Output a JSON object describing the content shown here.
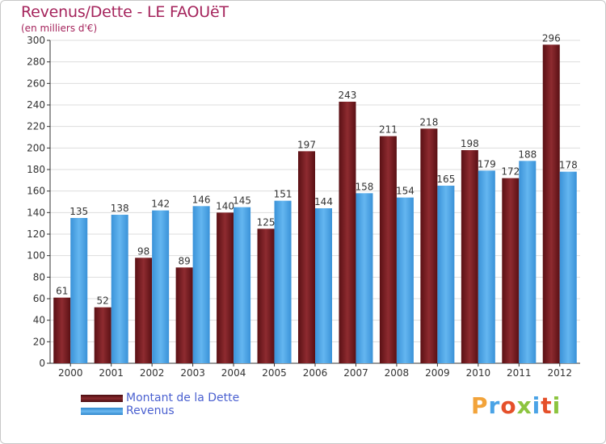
{
  "header": {
    "title": "Revenus/Dette - LE FAOUëT",
    "subtitle": "(en milliers d'€)"
  },
  "colors": {
    "dette": "#7a1f23",
    "revenus": "#4aa3e6",
    "grid": "#dddddd",
    "axis": "#333333",
    "label": "#333333"
  },
  "logo": {
    "letters": [
      "P",
      "r",
      "o",
      "x",
      "i",
      "t",
      "i"
    ],
    "colors": [
      "#f2a33a",
      "#4aa3e6",
      "#e5502a",
      "#8cc43f",
      "#4aa3e6",
      "#e5502a",
      "#8cc43f"
    ]
  },
  "chart_data": {
    "type": "bar",
    "title": "Revenus/Dette - LE FAOUëT",
    "subtitle": "(en milliers d'€)",
    "categories": [
      "2000",
      "2001",
      "2002",
      "2003",
      "2004",
      "2005",
      "2006",
      "2007",
      "2008",
      "2009",
      "2010",
      "2011",
      "2012"
    ],
    "series": [
      {
        "name": "Montant de la Dette",
        "values": [
          61,
          52,
          98,
          89,
          140,
          125,
          197,
          243,
          211,
          218,
          198,
          172,
          296
        ]
      },
      {
        "name": "Revenus",
        "values": [
          135,
          138,
          142,
          146,
          145,
          151,
          144,
          158,
          154,
          165,
          179,
          188,
          178
        ]
      }
    ],
    "ylim": [
      0,
      300
    ],
    "yticks": [
      0,
      20,
      40,
      60,
      80,
      100,
      120,
      140,
      160,
      180,
      200,
      220,
      240,
      260,
      280,
      300
    ],
    "grid": true,
    "legend": "bottom-left"
  }
}
